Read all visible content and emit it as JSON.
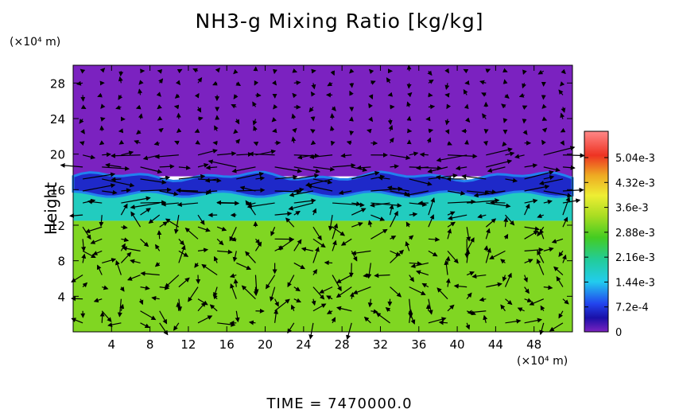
{
  "chart_data": {
    "type": "heatmap",
    "title": "NH3-g Mixing Ratio [kg/kg]",
    "ylabel": "Height",
    "y_unit": "(×10⁴ m)",
    "x_unit": "(×10⁴ m)",
    "xlim": [
      0,
      52
    ],
    "ylim": [
      0,
      30
    ],
    "x_ticks": [
      4,
      8,
      12,
      16,
      20,
      24,
      28,
      32,
      36,
      40,
      44,
      48
    ],
    "y_ticks": [
      4,
      8,
      12,
      16,
      20,
      24,
      28
    ],
    "colorbar": {
      "min": 0,
      "max": 0.0058,
      "tick_values": [
        0,
        0.00072,
        0.00144,
        0.00216,
        0.00288,
        0.0036,
        0.00432,
        0.00504
      ],
      "tick_labels": [
        "0",
        "7.2e-4",
        "1.44e-3",
        "2.16e-3",
        "2.88e-3",
        "3.6e-3",
        "4.32e-3",
        "5.04e-3"
      ]
    },
    "field_summary": {
      "lower_layer": {
        "height_range": [
          0,
          12.5
        ],
        "value": 0.0031
      },
      "transition_layer": {
        "height_range": [
          12.5,
          16.5
        ],
        "value": 0.0018
      },
      "depleted_band": {
        "height_range": [
          15.5,
          17.5
        ],
        "value": 0.0006
      },
      "upper_layer": {
        "height_range": [
          17.5,
          30
        ],
        "value": 0.0
      }
    },
    "grid": false,
    "overlay": "wind vector arrows"
  },
  "footer": "TIME = 7470000.0"
}
